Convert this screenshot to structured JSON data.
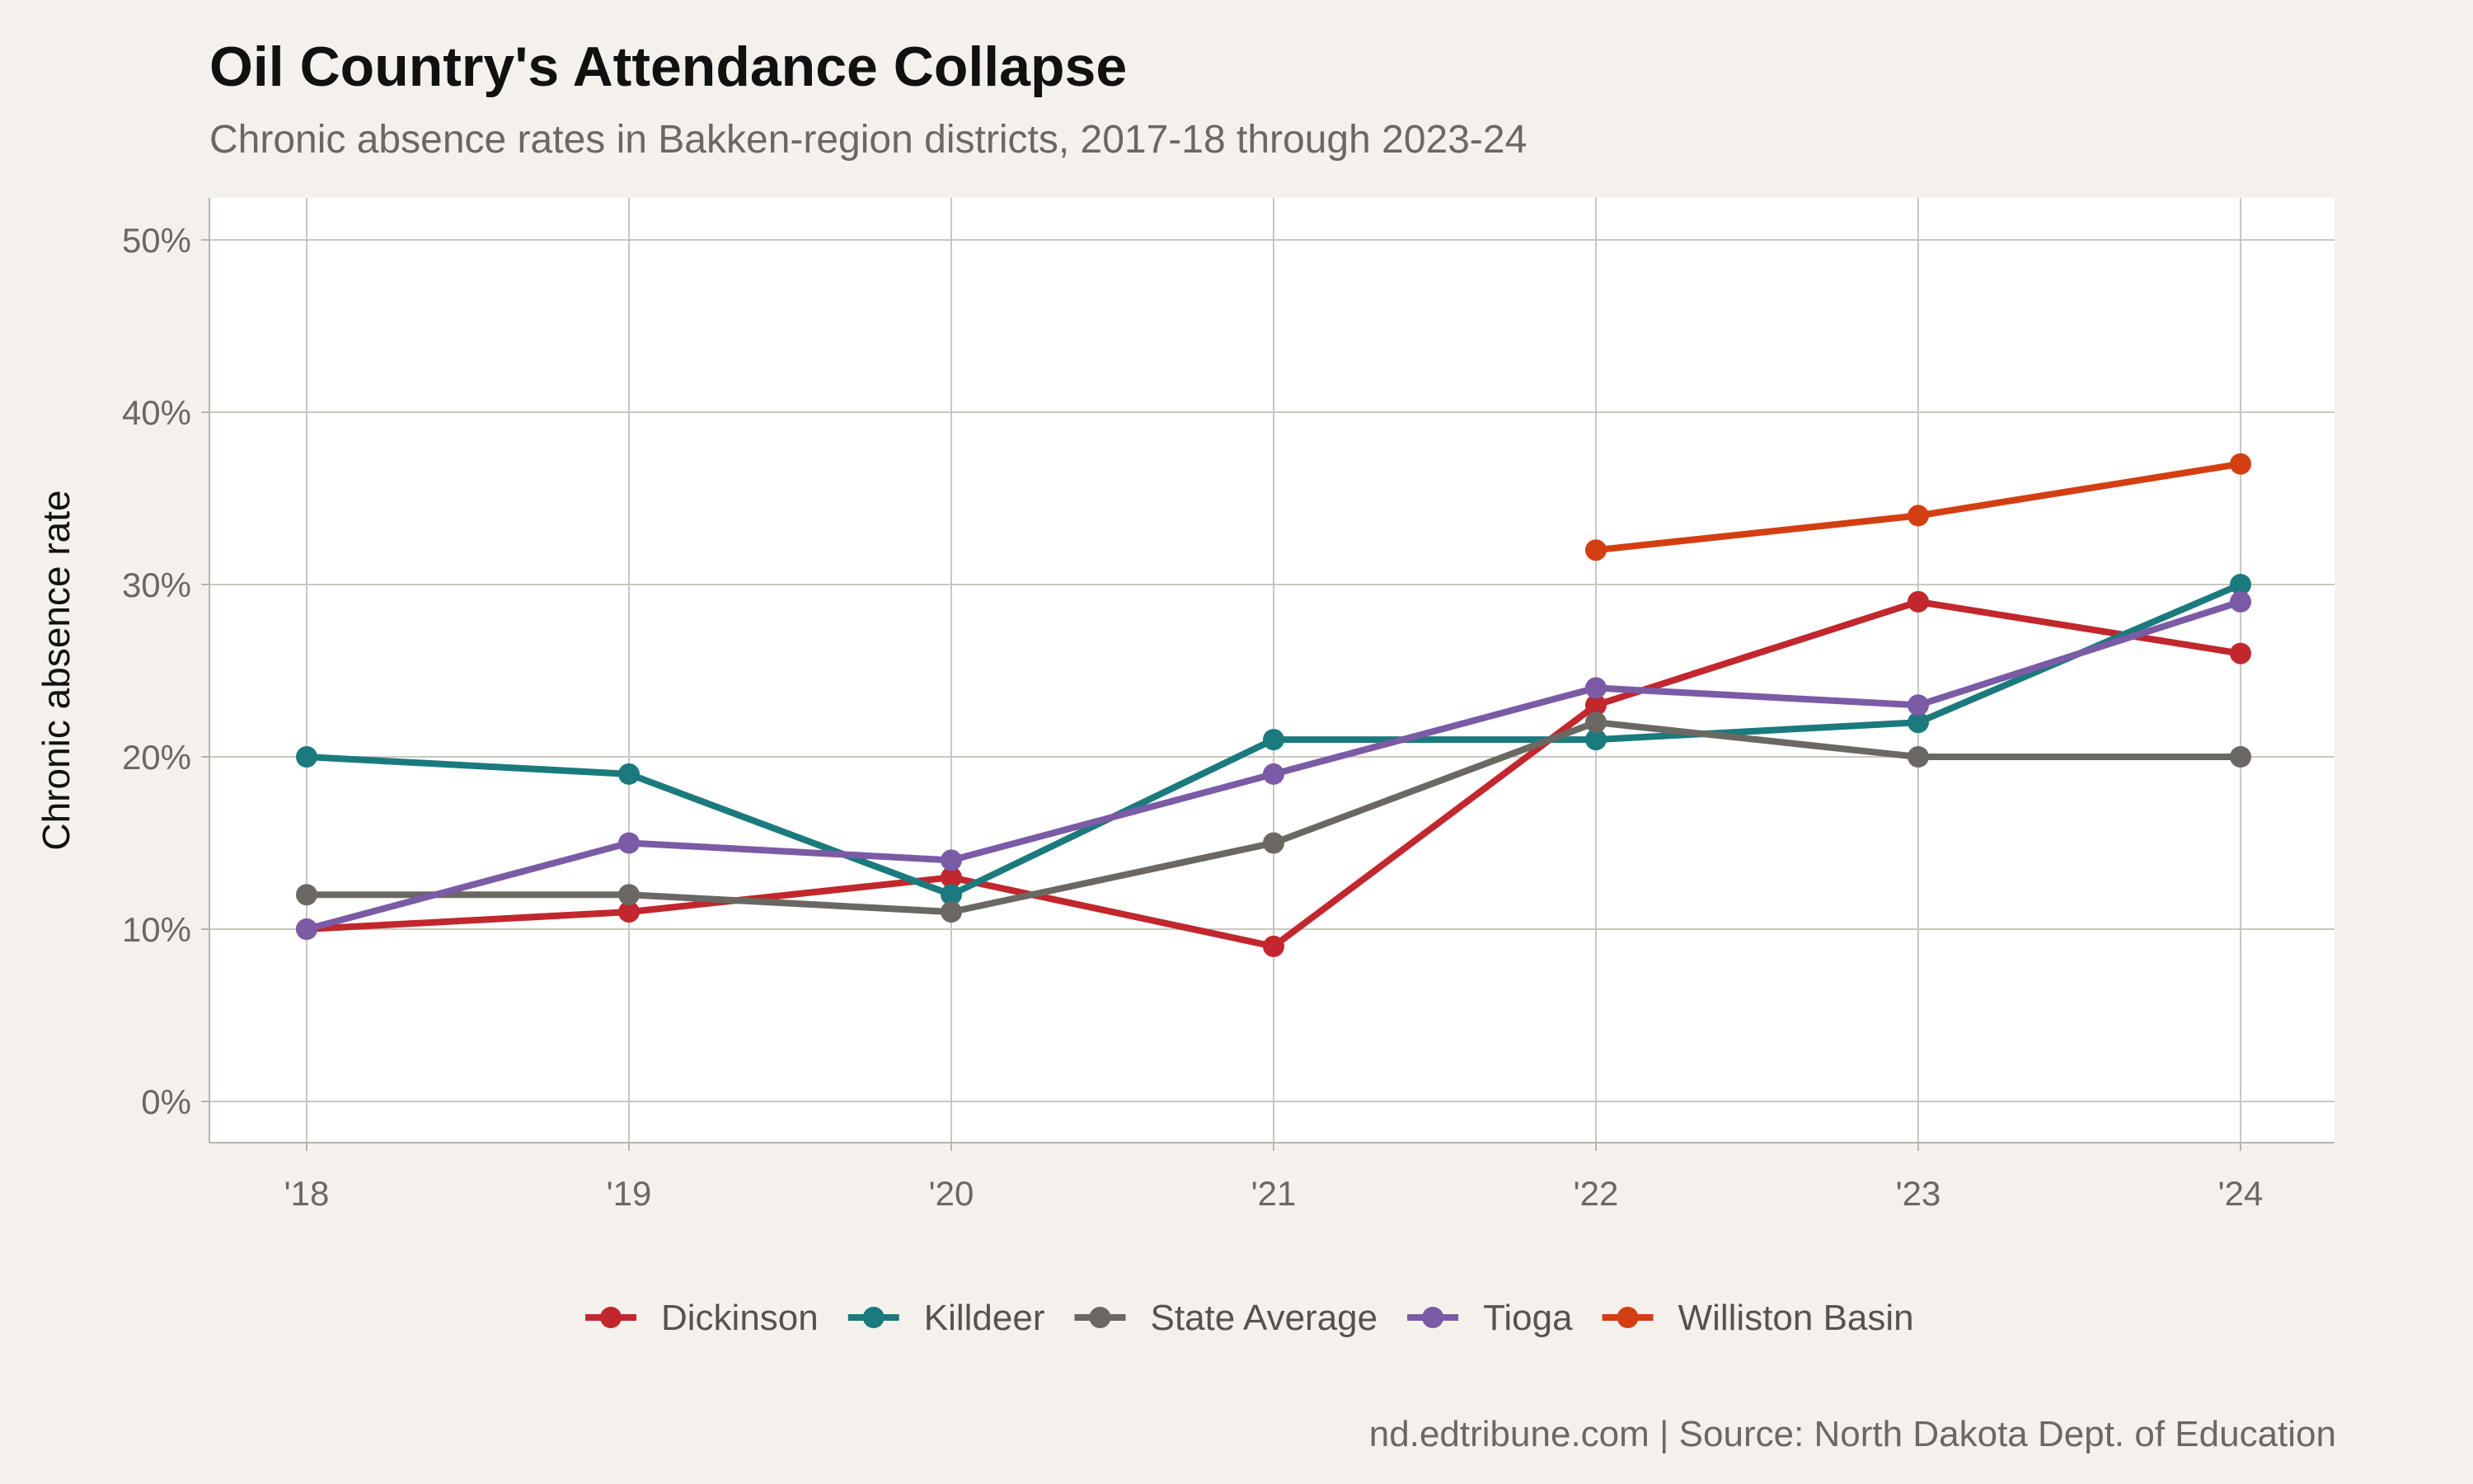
{
  "title": "Oil Country's Attendance Collapse",
  "subtitle": "Chronic absence rates in Bakken-region districts, 2017-18 through 2023-24",
  "caption": "nd.edtribune.com | Source: North Dakota Dept. of Education",
  "chart_data": {
    "type": "line",
    "ylabel": "Chronic absence rate",
    "xlabel": "",
    "categories": [
      "'18",
      "'19",
      "'20",
      "'21",
      "'22",
      "'23",
      "'24"
    ],
    "ylim": [
      0,
      50
    ],
    "yticks": [
      0,
      10,
      20,
      30,
      40,
      50
    ],
    "y_tick_labels": [
      "0%",
      "10%",
      "20%",
      "30%",
      "40%",
      "50%"
    ],
    "grid": true,
    "legend": "bottom",
    "series": [
      {
        "name": "Dickinson",
        "color": "#c1272d",
        "values": [
          10,
          11,
          13,
          9,
          23,
          29,
          26
        ]
      },
      {
        "name": "Killdeer",
        "color": "#1b7a7d",
        "values": [
          20,
          19,
          12,
          21,
          21,
          22,
          30
        ]
      },
      {
        "name": "State Average",
        "color": "#6b6864",
        "values": [
          12,
          12,
          11,
          15,
          22,
          20,
          20
        ]
      },
      {
        "name": "Tioga",
        "color": "#7b5aa6",
        "values": [
          10,
          15,
          14,
          19,
          24,
          23,
          29
        ]
      },
      {
        "name": "Williston Basin",
        "color": "#d33f12",
        "values": [
          null,
          null,
          null,
          null,
          32,
          34,
          37
        ]
      }
    ]
  }
}
